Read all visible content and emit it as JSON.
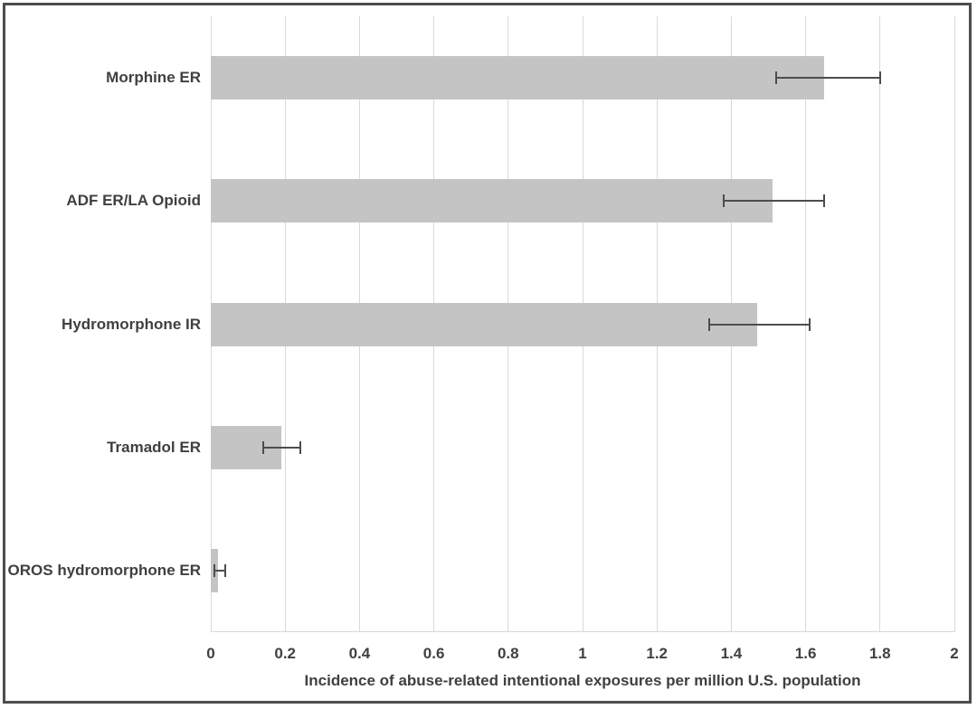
{
  "figure": {
    "background": "#ffffff",
    "border_color": "#4d4d4d"
  },
  "chart_data": {
    "type": "bar",
    "orientation": "horizontal",
    "title": "",
    "xlabel": "Incidence of abuse-related intentional exposures per million U.S. population",
    "ylabel": "",
    "xlim": [
      0,
      2
    ],
    "xtick_step": 0.2,
    "xtick_labels": [
      "0",
      "0.2",
      "0.4",
      "0.6",
      "0.8",
      "1",
      "1.2",
      "1.4",
      "1.6",
      "1.8",
      "2"
    ],
    "grid": "vertical",
    "legend": null,
    "categories": [
      "Morphine ER",
      "ADF ER/LA Opioid",
      "Hydromorphone IR",
      "Tramadol ER",
      "OROS hydromorphone ER"
    ],
    "values": [
      1.65,
      1.51,
      1.47,
      0.19,
      0.02
    ],
    "error_low": [
      1.52,
      1.38,
      1.34,
      0.14,
      0.01
    ],
    "error_high": [
      1.8,
      1.65,
      1.61,
      0.24,
      0.04
    ],
    "colors": {
      "bar": "#c4c4c4",
      "gridline": "#d9d9d9",
      "error_bar": "#4d4d4d",
      "text": "#404040"
    }
  }
}
